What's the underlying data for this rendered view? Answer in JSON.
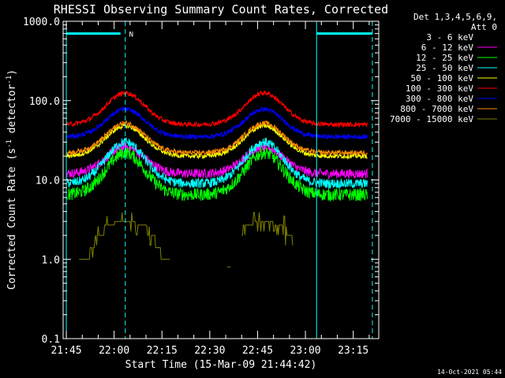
{
  "chart_data": {
    "type": "line",
    "title": "RHESSI Observing Summary Count Rates, Corrected",
    "xlabel": "Start Time (15-Mar-09 21:44:42)",
    "ylabel_prefix": "Corrected Count Rate (s",
    "ylabel_mid": " detector",
    "ylabel_suffix": ")",
    "ylabel_exp": "-1",
    "y_scale": "log",
    "ylim": [
      0.1,
      1000.0
    ],
    "y_ticks": [
      {
        "value": 0.1,
        "label": "0.1"
      },
      {
        "value": 1.0,
        "label": "1.0"
      },
      {
        "value": 10.0,
        "label": "10.0"
      },
      {
        "value": 100.0,
        "label": "100.0"
      },
      {
        "value": 1000.0,
        "label": "1000.0"
      }
    ],
    "x_unit": "minutes after 21:45",
    "xlim": [
      -1,
      98
    ],
    "x_ticks": [
      {
        "value": 0,
        "label": "21:45"
      },
      {
        "value": 15,
        "label": "22:00"
      },
      {
        "value": 30,
        "label": "22:15"
      },
      {
        "value": 45,
        "label": "22:30"
      },
      {
        "value": 60,
        "label": "22:45"
      },
      {
        "value": 75,
        "label": "23:00"
      },
      {
        "value": 90,
        "label": "23:15"
      }
    ],
    "grid": false,
    "legend_position": "right",
    "legend_header": [
      "Det 1,3,4,5,6,9,",
      "Att 0"
    ],
    "footer_date": "14-Oct-2021 05:44",
    "markers": {
      "night_start": 0,
      "night_end": 18.5,
      "night_start2": 78.5,
      "night_end2": 96,
      "saa_label": "N",
      "dashed_x": [
        18.5,
        96
      ],
      "solid_x": [
        0,
        78.5
      ],
      "bar_value": 700
    },
    "series": [
      {
        "name": "3 - 6 keV",
        "color": "#000000",
        "base": 5.8,
        "peak": 16,
        "noise": 0.18
      },
      {
        "name": "6 - 12 keV",
        "color": "#ff00ff",
        "base": 12,
        "peak": 26,
        "noise": 0.06
      },
      {
        "name": "12 - 25 keV",
        "color": "#00ff00",
        "base": 6.5,
        "peak": 22,
        "noise": 0.08
      },
      {
        "name": "25 - 50 keV",
        "color": "#00ffff",
        "base": 9,
        "peak": 30,
        "noise": 0.06
      },
      {
        "name": "50 - 100 keV",
        "color": "#ffff00",
        "base": 20,
        "peak": 48,
        "noise": 0.03
      },
      {
        "name": "100 - 300 keV",
        "color": "#ff0000",
        "base": 50,
        "peak": 125,
        "noise": 0.03
      },
      {
        "name": "300 - 800 keV",
        "color": "#0000ff",
        "base": 35,
        "peak": 78,
        "noise": 0.03
      },
      {
        "name": "800 - 7000 keV",
        "color": "#ff8c00",
        "base": 22,
        "peak": 52,
        "noise": 0.03
      },
      {
        "name": "7000 - 15000 keV",
        "color": "#808000",
        "base": 1.0,
        "peak": 3.0,
        "noise": 0.0
      }
    ]
  }
}
